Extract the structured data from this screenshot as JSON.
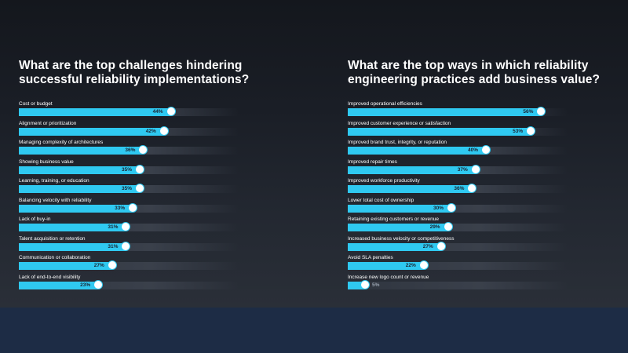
{
  "chart_data": [
    {
      "type": "bar",
      "title": "What are the top challenges hindering successful reliability implementations?",
      "categories": [
        "Cost or budget",
        "Alignment or prioritization",
        "Managing complexity of architectures",
        "Showing business value",
        "Learning, training, or education",
        "Balancing velocity with reliability",
        "Lack of buy-in",
        "Talent acquisition or retention",
        "Communication or collaboration",
        "Lack of end-to-end visibility"
      ],
      "values": [
        44,
        42,
        36,
        35,
        35,
        33,
        31,
        31,
        27,
        23
      ],
      "value_labels": [
        "44%",
        "42%",
        "36%",
        "35%",
        "35%",
        "33%",
        "31%",
        "31%",
        "27%",
        "23%"
      ],
      "orientation": "horizontal",
      "xlim": [
        0,
        100
      ]
    },
    {
      "type": "bar",
      "title": "What are the top ways in which reliability engineering practices add business value?",
      "categories": [
        "Improved operational efficiencies",
        "Improved customer experience or satisfaction",
        "Improved brand trust, integrity, or reputation",
        "Improved repair times",
        "Improved workforce productivity",
        "Lower total cost of ownership",
        "Retaining existing customers or revenue",
        "Increased business velocity or competitiveness",
        "Avoid SLA penalties",
        "Increase new logo count or revenue"
      ],
      "values": [
        56,
        53,
        40,
        37,
        36,
        30,
        29,
        27,
        22,
        5
      ],
      "value_labels": [
        "56%",
        "53%",
        "40%",
        "37%",
        "36%",
        "30%",
        "29%",
        "27%",
        "22%",
        "5%"
      ],
      "orientation": "horizontal",
      "xlim": [
        0,
        100
      ]
    }
  ],
  "colors": {
    "fill": "#2fc9f1",
    "background": "#1d2c45"
  }
}
